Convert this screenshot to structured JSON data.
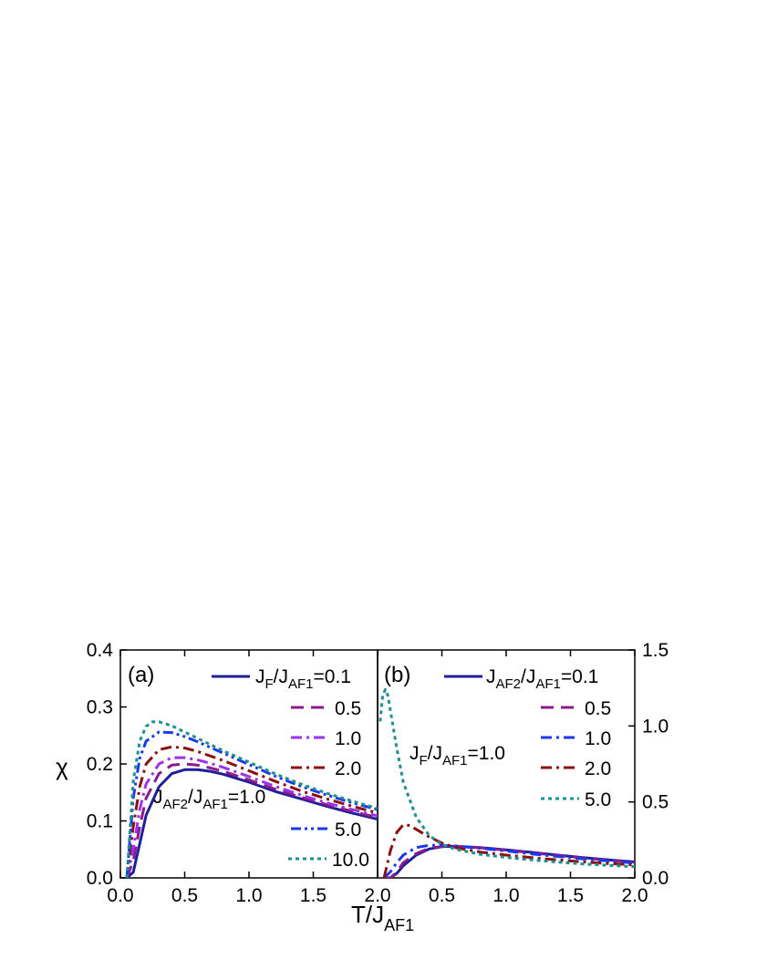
{
  "chart_data": [
    {
      "type": "line",
      "panel_label": "(a)",
      "xlabel": "T/J",
      "xlabel_sub": "AF1",
      "ylabel": "χ",
      "xlim": [
        0,
        2.0
      ],
      "ylim": [
        0,
        0.4
      ],
      "x_ticks": [
        "0.0",
        "0.5",
        "1.0",
        "1.5",
        "2.0"
      ],
      "y_ticks": [
        "0.0",
        "0.1",
        "0.2",
        "0.3",
        "0.4"
      ],
      "legend_placement": "right",
      "legend_title": {
        "main": "J",
        "sub": "F",
        "main2": "/J",
        "sub2": "AF1",
        "tail": "=0.1"
      },
      "annotation": {
        "main": "J",
        "sub": "AF2",
        "main2": "/J",
        "sub2": "AF1",
        "tail": "=1.0"
      },
      "series": [
        {
          "name": "0.1",
          "color": "#1f1f99",
          "dash": "solid",
          "x": [
            0.05,
            0.1,
            0.15,
            0.2,
            0.3,
            0.4,
            0.5,
            0.6,
            0.7,
            0.8,
            1.0,
            1.2,
            1.4,
            1.6,
            1.8,
            2.0
          ],
          "y": [
            0.0,
            0.01,
            0.06,
            0.11,
            0.16,
            0.183,
            0.19,
            0.19,
            0.187,
            0.182,
            0.168,
            0.152,
            0.139,
            0.126,
            0.114,
            0.103
          ]
        },
        {
          "name": "0.5",
          "color": "#8b1a8b",
          "dash": "dash",
          "x": [
            0.05,
            0.1,
            0.15,
            0.2,
            0.3,
            0.4,
            0.5,
            0.6,
            0.7,
            0.8,
            1.0,
            1.2,
            1.4,
            1.6,
            1.8,
            2.0
          ],
          "y": [
            0.0,
            0.03,
            0.09,
            0.14,
            0.183,
            0.198,
            0.2,
            0.198,
            0.193,
            0.187,
            0.172,
            0.156,
            0.142,
            0.129,
            0.117,
            0.106
          ]
        },
        {
          "name": "1.0",
          "color": "#9933ee",
          "dash": "dashdot",
          "x": [
            0.05,
            0.1,
            0.15,
            0.2,
            0.3,
            0.4,
            0.5,
            0.6,
            0.7,
            0.8,
            1.0,
            1.2,
            1.4,
            1.6,
            1.8,
            2.0
          ],
          "y": [
            0.0,
            0.05,
            0.12,
            0.165,
            0.2,
            0.211,
            0.211,
            0.207,
            0.201,
            0.194,
            0.178,
            0.161,
            0.146,
            0.132,
            0.12,
            0.109
          ]
        },
        {
          "name": "2.0",
          "color": "#8b1010",
          "dash": "dashdot",
          "x": [
            0.05,
            0.1,
            0.15,
            0.2,
            0.3,
            0.4,
            0.5,
            0.6,
            0.7,
            0.8,
            1.0,
            1.2,
            1.4,
            1.6,
            1.8,
            2.0
          ],
          "y": [
            0.0,
            0.09,
            0.16,
            0.2,
            0.225,
            0.23,
            0.228,
            0.222,
            0.214,
            0.206,
            0.188,
            0.17,
            0.153,
            0.139,
            0.126,
            0.114
          ]
        },
        {
          "name": "5.0",
          "color": "#1a3aee",
          "dash": "dashdotdot",
          "x": [
            0.05,
            0.1,
            0.15,
            0.2,
            0.3,
            0.4,
            0.5,
            0.6,
            0.7,
            0.8,
            1.0,
            1.2,
            1.4,
            1.6,
            1.8,
            2.0
          ],
          "y": [
            0.0,
            0.14,
            0.21,
            0.24,
            0.256,
            0.255,
            0.248,
            0.239,
            0.229,
            0.219,
            0.199,
            0.179,
            0.161,
            0.146,
            0.132,
            0.12
          ]
        },
        {
          "name": "10.0",
          "color": "#1f8f8f",
          "dash": "dot",
          "x": [
            0.05,
            0.1,
            0.15,
            0.2,
            0.25,
            0.3,
            0.4,
            0.5,
            0.6,
            0.7,
            0.8,
            1.0,
            1.2,
            1.4,
            1.6,
            1.8,
            2.0
          ],
          "y": [
            0.0,
            0.17,
            0.24,
            0.266,
            0.274,
            0.274,
            0.267,
            0.256,
            0.245,
            0.234,
            0.223,
            0.203,
            0.183,
            0.165,
            0.149,
            0.135,
            0.122
          ]
        }
      ]
    },
    {
      "type": "line",
      "panel_label": "(b)",
      "xlabel": "T/J",
      "xlabel_sub": "AF1",
      "xlim": [
        0,
        2.0
      ],
      "ylim": [
        0,
        1.5
      ],
      "x_ticks": [
        "0.0",
        "0.5",
        "1.0",
        "1.5",
        "2.0"
      ],
      "y_ticks": [
        "0.0",
        "0.5",
        "1.0",
        "1.5"
      ],
      "y_axis_side": "right",
      "legend_placement": "right",
      "legend_title": {
        "main": "J",
        "sub": "AF2",
        "main2": "/J",
        "sub2": "AF1",
        "tail": "=0.1"
      },
      "annotation": {
        "main": "J",
        "sub": "F",
        "main2": "/J",
        "sub2": "AF1",
        "tail": "=1.0"
      },
      "series": [
        {
          "name": "0.1",
          "color": "#1f1f99",
          "dash": "solid",
          "x": [
            0.05,
            0.1,
            0.15,
            0.2,
            0.3,
            0.4,
            0.5,
            0.6,
            0.8,
            1.0,
            1.2,
            1.4,
            1.6,
            1.8,
            2.0
          ],
          "y": [
            0.0,
            0.0,
            0.03,
            0.08,
            0.15,
            0.19,
            0.205,
            0.208,
            0.2,
            0.185,
            0.168,
            0.15,
            0.133,
            0.118,
            0.105
          ]
        },
        {
          "name": "0.5",
          "color": "#8b1a8b",
          "dash": "dash",
          "x": [
            0.05,
            0.1,
            0.15,
            0.2,
            0.3,
            0.4,
            0.5,
            0.6,
            0.8,
            1.0,
            1.2,
            1.4,
            1.6,
            1.8,
            2.0
          ],
          "y": [
            0.0,
            0.0,
            0.04,
            0.1,
            0.16,
            0.195,
            0.207,
            0.208,
            0.198,
            0.183,
            0.165,
            0.148,
            0.131,
            0.116,
            0.103
          ]
        },
        {
          "name": "1.0",
          "color": "#1a3aee",
          "dash": "dashdot",
          "x": [
            0.05,
            0.1,
            0.15,
            0.2,
            0.3,
            0.4,
            0.5,
            0.6,
            0.8,
            1.0,
            1.2,
            1.4,
            1.6,
            1.8,
            2.0
          ],
          "y": [
            0.0,
            0.04,
            0.1,
            0.15,
            0.2,
            0.215,
            0.215,
            0.21,
            0.195,
            0.177,
            0.158,
            0.141,
            0.125,
            0.111,
            0.098
          ]
        },
        {
          "name": "2.0",
          "color": "#8b1010",
          "dash": "dashdot",
          "x": [
            0.05,
            0.1,
            0.15,
            0.2,
            0.25,
            0.3,
            0.4,
            0.5,
            0.6,
            0.8,
            1.0,
            1.2,
            1.4,
            1.6,
            1.8,
            2.0
          ],
          "y": [
            0.0,
            0.18,
            0.3,
            0.35,
            0.345,
            0.32,
            0.27,
            0.23,
            0.2,
            0.17,
            0.15,
            0.133,
            0.118,
            0.105,
            0.094,
            0.085
          ]
        },
        {
          "name": "5.0",
          "color": "#1f8f8f",
          "dash": "dot",
          "x": [
            0.02,
            0.04,
            0.06,
            0.08,
            0.1,
            0.15,
            0.2,
            0.3,
            0.4,
            0.5,
            0.6,
            0.8,
            1.0,
            1.2,
            1.4,
            1.6,
            1.8,
            2.0
          ],
          "y": [
            1.03,
            1.2,
            1.24,
            1.2,
            1.1,
            0.85,
            0.63,
            0.4,
            0.28,
            0.22,
            0.19,
            0.155,
            0.135,
            0.118,
            0.104,
            0.092,
            0.082,
            0.074
          ]
        }
      ]
    }
  ]
}
